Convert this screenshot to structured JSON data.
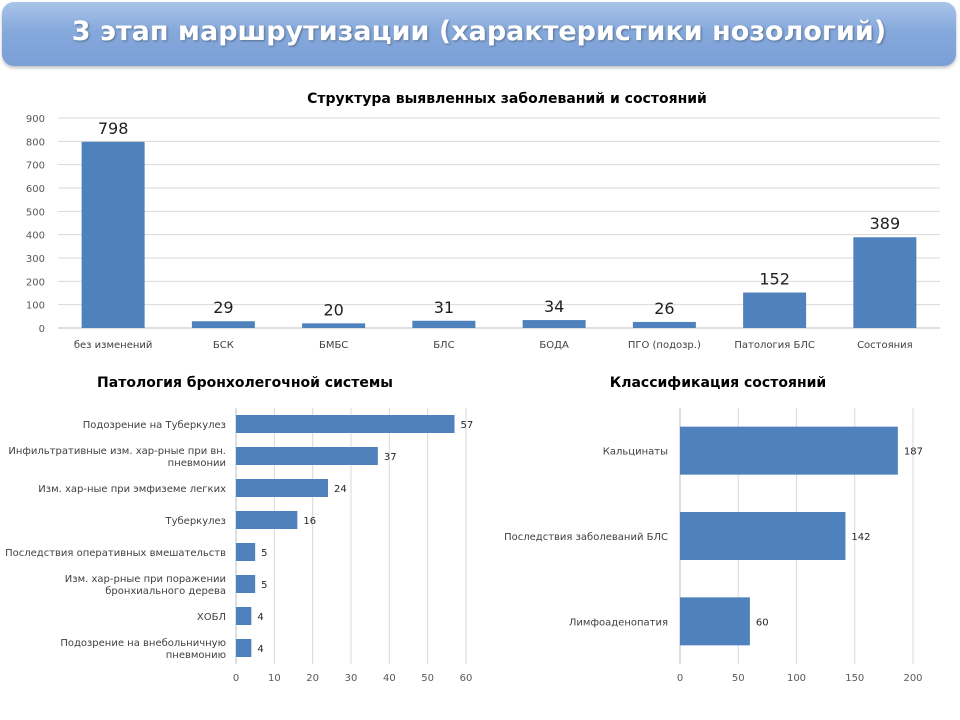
{
  "header": {
    "title": "3 этап маршрутизации (характеристики нозологий)"
  },
  "chart_data": [
    {
      "type": "bar",
      "orientation": "vertical",
      "title": "Структура выявленных заболеваний и состояний",
      "categories": [
        "без изменений",
        "БСК",
        "БМБС",
        "БЛС",
        "БОДА",
        "ПГО (подозр.)",
        "Патология БЛС",
        "Состояния"
      ],
      "values": [
        798,
        29,
        20,
        31,
        34,
        26,
        152,
        389
      ],
      "ylim": [
        0,
        900
      ],
      "yticks": [
        0,
        100,
        200,
        300,
        400,
        500,
        600,
        700,
        800,
        900
      ],
      "grid": true,
      "data_labels": true,
      "color": "#4f81bd"
    },
    {
      "type": "bar",
      "orientation": "horizontal",
      "title": "Патология бронхолегочной системы",
      "categories": [
        [
          "Подозрение на Туберкулез"
        ],
        [
          "Инфильтративные изм. хар-рные при вн.",
          "пневмонии"
        ],
        [
          "Изм. хар-ные при эмфиземе легких"
        ],
        [
          "Туберкулез"
        ],
        [
          "Последствия оперативных вмешательств"
        ],
        [
          "Изм. хар-рные при поражении",
          "бронхиального дерева"
        ],
        [
          "ХОБЛ"
        ],
        [
          "Подозрение на внебольничную",
          "пневмонию"
        ]
      ],
      "values": [
        57,
        37,
        24,
        16,
        5,
        5,
        4,
        4
      ],
      "xlim": [
        0,
        60
      ],
      "xticks": [
        0,
        10,
        20,
        30,
        40,
        50,
        60
      ],
      "grid": true,
      "data_labels": true,
      "color": "#4f81bd"
    },
    {
      "type": "bar",
      "orientation": "horizontal",
      "title": "Классификация состояний",
      "categories": [
        [
          "Кальцинаты"
        ],
        [
          "Последствия заболеваний БЛС"
        ],
        [
          "Лимфоаденопатия"
        ]
      ],
      "values": [
        187,
        142,
        60
      ],
      "xlim": [
        0,
        200
      ],
      "xticks": [
        0,
        50,
        100,
        150,
        200
      ],
      "grid": true,
      "data_labels": true,
      "color": "#4f81bd"
    }
  ]
}
